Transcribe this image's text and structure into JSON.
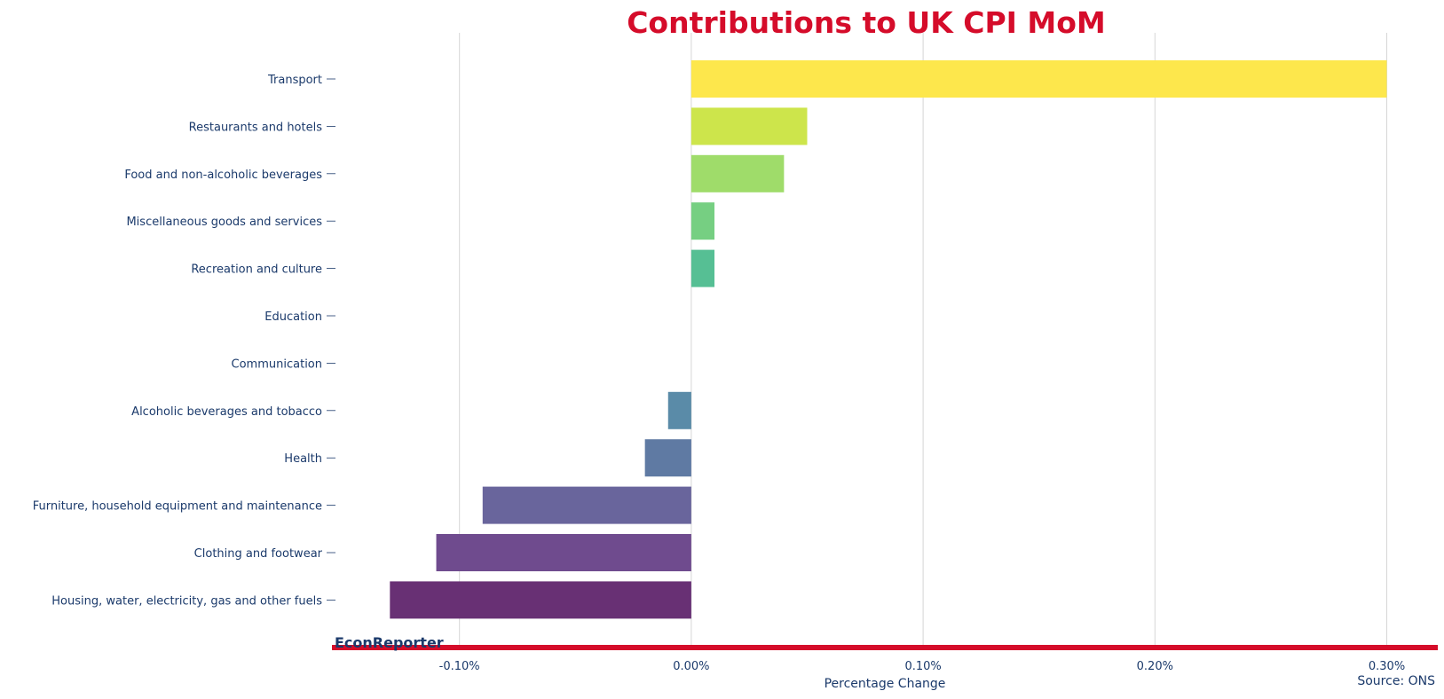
{
  "chart_data": {
    "type": "bar",
    "orientation": "horizontal",
    "title": "Contributions to UK CPI MoM",
    "xlabel": "Percentage Change",
    "ylabel": "",
    "categories": [
      "Transport",
      "Restaurants and hotels",
      "Food and non-alcoholic beverages",
      "Miscellaneous goods and services",
      "Recreation and culture",
      "Education",
      "Communication",
      "Alcoholic beverages and tobacco",
      "Health",
      "Furniture, household equipment and maintenance",
      "Clothing and footwear",
      "Housing, water, electricity, gas and other fuels"
    ],
    "values": [
      0.3,
      0.05,
      0.04,
      0.01,
      0.01,
      0.0,
      0.0,
      -0.01,
      -0.02,
      -0.09,
      -0.11,
      -0.13
    ],
    "colors": [
      "#fde74c",
      "#cde54b",
      "#9fdc6a",
      "#76cf82",
      "#56bf94",
      "#3fa69a",
      "#3a8f9b",
      "#5a8ba8",
      "#5f7aa3",
      "#69659c",
      "#6f4b8e",
      "#683074"
    ],
    "xlim": [
      -0.155,
      0.322
    ],
    "xticks": [
      -0.1,
      0.0,
      0.1,
      0.2,
      0.3
    ],
    "xtick_labels": [
      "-0.10%",
      "0.00%",
      "0.10%",
      "0.20%",
      "0.30%"
    ],
    "grid": "vertical",
    "source": "Source: ONS",
    "brand": "EconReporter",
    "accent_color": "#d50c2a",
    "text_color": "#1b3a6b"
  }
}
